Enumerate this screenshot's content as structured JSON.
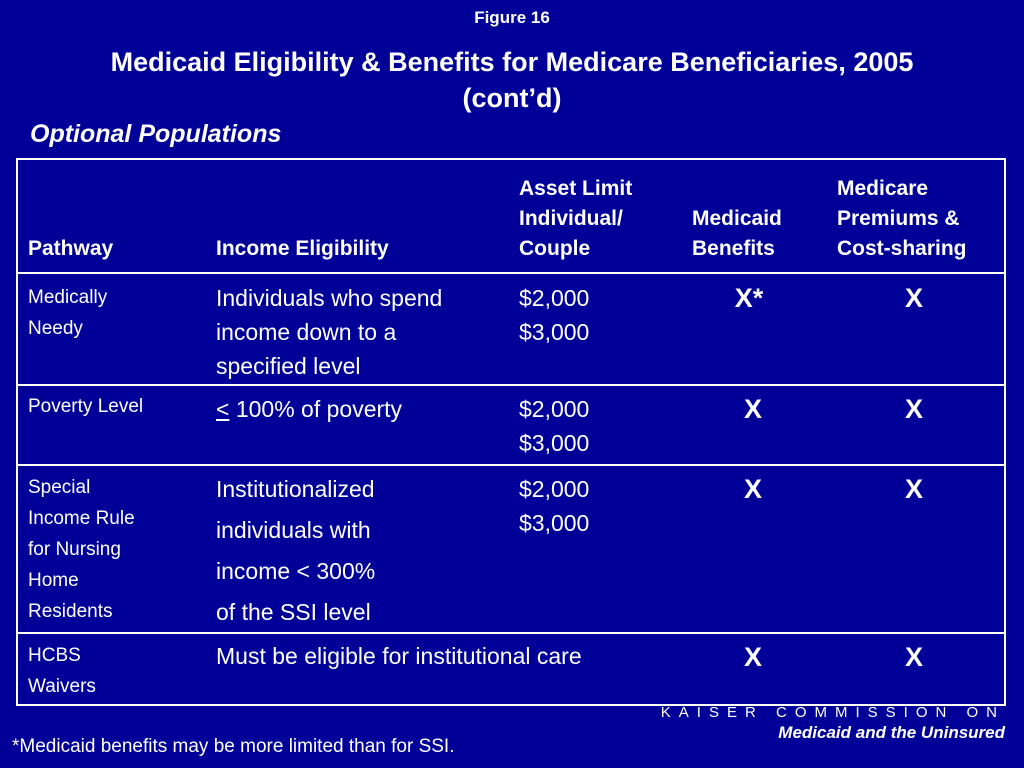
{
  "figure_label": "Figure 16",
  "title_line1": "Medicaid Eligibility & Benefits for Medicare Beneficiaries, 2005",
  "title_line2": "(cont’d)",
  "subtitle": "Optional Populations",
  "headers": {
    "pathway": "Pathway",
    "income": "Income Eligibility",
    "asset_line1": "Asset Limit",
    "asset_line2": "Individual/",
    "asset_line3": "Couple",
    "benefits_line1": "Medicaid",
    "benefits_line2": "Benefits",
    "premiums_line1": "Medicare",
    "premiums_line2": "Premiums &",
    "premiums_line3": "Cost-sharing"
  },
  "rows": [
    {
      "pathway": [
        "Medically",
        "Needy"
      ],
      "income": [
        "Individuals who spend",
        "income down to a",
        "specified level"
      ],
      "asset": [
        "$2,000",
        "$3,000"
      ],
      "benefits": "X*",
      "premiums": "X"
    },
    {
      "pathway": [
        "Poverty Level"
      ],
      "income_prefix": "<",
      "income": [
        " 100% of poverty"
      ],
      "asset": [
        "$2,000",
        "$3,000"
      ],
      "benefits": "X",
      "premiums": "X"
    },
    {
      "pathway": [
        "Special",
        "Income Rule",
        "for Nursing",
        "Home",
        "Residents"
      ],
      "income": [
        "Institutionalized",
        "individuals with",
        "income < 300%",
        "of the SSI level"
      ],
      "asset": [
        "$2,000",
        "$3,000"
      ],
      "benefits": "X",
      "premiums": "X"
    },
    {
      "pathway": [
        "HCBS",
        "Waivers"
      ],
      "income": [
        "Must be eligible for institutional care"
      ],
      "benefits": "X",
      "premiums": "X"
    }
  ],
  "footnote": "*Medicaid benefits may be more limited than for SSI.",
  "logo_top": "KAISER COMMISSION ON",
  "logo_bottom": "Medicaid and the Uninsured"
}
